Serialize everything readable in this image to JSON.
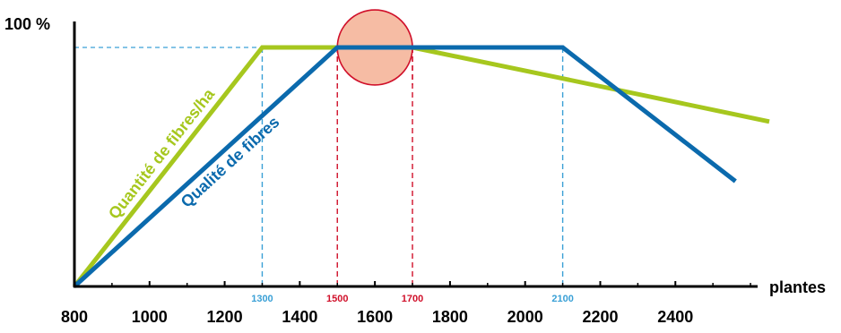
{
  "chart_data": {
    "type": "line",
    "xlabel": "plantes",
    "ylabel": "100 %",
    "xlim": [
      800,
      2650
    ],
    "ylim": [
      0,
      100
    ],
    "xticks": [
      800,
      1000,
      1200,
      1400,
      1600,
      1800,
      2000,
      2200,
      2400
    ],
    "xtick_labels": [
      "800",
      "1000",
      "1200",
      "1400",
      "1600",
      "1800",
      "2000",
      "2200",
      "2400"
    ],
    "reference_line_y": 100,
    "marked_x": [
      {
        "value": 1300,
        "label": "1300",
        "color": "#3aa0d6"
      },
      {
        "value": 1500,
        "label": "1500",
        "color": "#d0102a"
      },
      {
        "value": 1700,
        "label": "1700",
        "color": "#d0102a"
      },
      {
        "value": 2100,
        "label": "2100",
        "color": "#3aa0d6"
      }
    ],
    "highlight": {
      "center_x": 1600,
      "center_y": 100,
      "range": [
        1500,
        1700
      ],
      "fill": "#f6bca4",
      "stroke": "#d0102a"
    },
    "series": [
      {
        "name": "Quantité de fibres/ha",
        "color": "#a6c71e",
        "x": [
          800,
          1300,
          1700,
          2100,
          2650
        ],
        "y": [
          0,
          100,
          100,
          87,
          69
        ]
      },
      {
        "name": "Qualité de fibres",
        "color": "#0b6aad",
        "x": [
          800,
          1500,
          2100,
          2560
        ],
        "y": [
          0,
          100,
          100,
          44
        ]
      }
    ],
    "grid": false,
    "legend": "inline"
  }
}
